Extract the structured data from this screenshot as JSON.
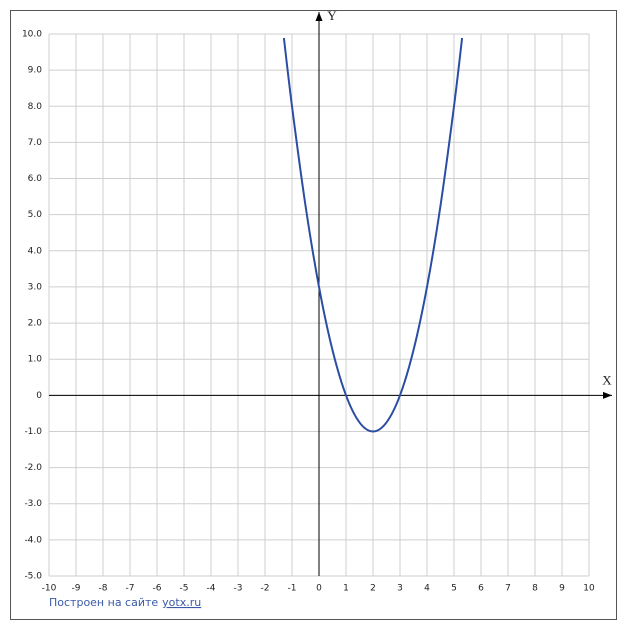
{
  "chart_data": {
    "type": "line",
    "xlabel": "X",
    "ylabel": "Y",
    "x": [
      -1.3,
      -1,
      -0.5,
      0,
      0.5,
      1,
      1.5,
      2,
      2.5,
      3,
      3.5,
      4,
      4.5,
      5,
      5.3
    ],
    "series": [
      {
        "color": "#2b4ea3",
        "values": [
          9.89,
          8,
          5.25,
          3,
          1.25,
          0,
          -0.75,
          -1,
          -0.75,
          0,
          1.25,
          3,
          5.25,
          8,
          9.89
        ]
      }
    ],
    "xlim": [
      -10,
      10
    ],
    "ylim": [
      -5,
      10
    ],
    "xticks": [
      -10,
      -9,
      -8,
      -7,
      -6,
      -5,
      -4,
      -3,
      -2,
      -1,
      0,
      1,
      2,
      3,
      4,
      5,
      6,
      7,
      8,
      9,
      10
    ],
    "yticks": [
      {
        "value": 10,
        "label": "10.0"
      },
      {
        "value": 9,
        "label": "9.0"
      },
      {
        "value": 8,
        "label": "8.0"
      },
      {
        "value": 7,
        "label": "7.0"
      },
      {
        "value": 6,
        "label": "6.0"
      },
      {
        "value": 5,
        "label": "5.0"
      },
      {
        "value": 4,
        "label": "4.0"
      },
      {
        "value": 3,
        "label": "3.0"
      },
      {
        "value": 2,
        "label": "2.0"
      },
      {
        "value": 1,
        "label": "1.0"
      },
      0,
      {
        "value": -1,
        "label": "-1.0"
      },
      {
        "value": -2,
        "label": "-2.0"
      },
      {
        "value": -3,
        "label": "-3.0"
      },
      {
        "value": -4,
        "label": "-4.0"
      },
      {
        "value": -5,
        "label": "-5.0"
      }
    ],
    "grid": true
  },
  "credit": {
    "text": "Построен на сайте",
    "link": "yotx.ru"
  }
}
